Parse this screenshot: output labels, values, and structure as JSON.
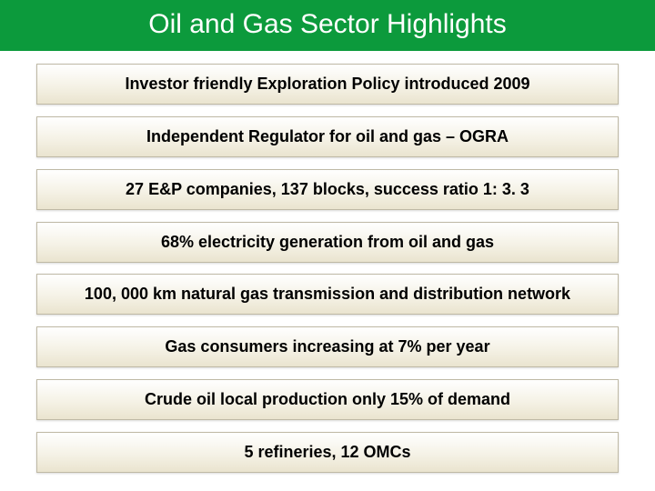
{
  "title": "Oil and Gas Sector Highlights",
  "title_bg": "#0c9a3c",
  "title_color": "#ffffff",
  "title_fontsize": 30,
  "box_border_color": "#bfb9a5",
  "box_gradient_top": "#ffffff",
  "box_gradient_mid": "#f5f2e6",
  "box_gradient_bottom": "#eae4cf",
  "box_text_color": "#000000",
  "box_fontsize": 18,
  "highlights": [
    "Investor friendly Exploration Policy introduced 2009",
    "Independent Regulator for oil and gas – OGRA",
    "27 E&P companies, 137 blocks, success ratio 1: 3. 3",
    "68% electricity generation from oil and gas",
    "100, 000 km natural gas transmission and distribution network",
    "Gas consumers increasing at  7% per year",
    "Crude oil local production only 15% of demand",
    "5 refineries, 12 OMCs"
  ]
}
